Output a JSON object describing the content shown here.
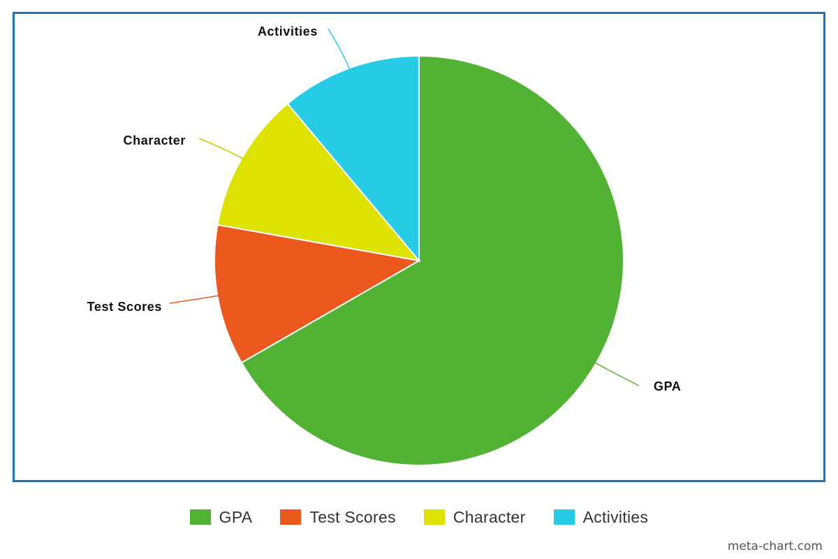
{
  "chart_data": {
    "type": "pie",
    "title": "",
    "slices": [
      {
        "label": "GPA",
        "value": 66.7,
        "color": "#52b234"
      },
      {
        "label": "Test Scores",
        "value": 11.1,
        "color": "#ec571e"
      },
      {
        "label": "Character",
        "value": 11.1,
        "color": "#dde200"
      },
      {
        "label": "Activities",
        "value": 11.1,
        "color": "#26cbe5"
      }
    ],
    "start_angle_deg": 0,
    "direction": "clockwise",
    "legend_position": "bottom"
  },
  "legend": {
    "items": [
      {
        "label": "GPA",
        "color": "#52b234"
      },
      {
        "label": "Test Scores",
        "color": "#ec571e"
      },
      {
        "label": "Character",
        "color": "#dde200"
      },
      {
        "label": "Activities",
        "color": "#26cbe5"
      }
    ]
  },
  "watermark": "meta-chart.com",
  "border_color": "#1b75bc"
}
